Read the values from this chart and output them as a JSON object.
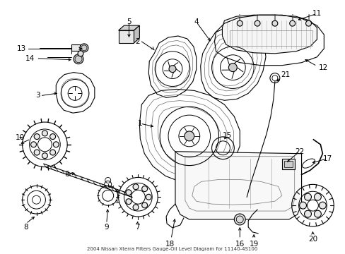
{
  "title": "2004 Nissan Xterra Filters Gauge-Oil Level Diagram for 11140-4S100",
  "bg_color": "#ffffff",
  "fig_width": 4.89,
  "fig_height": 3.6,
  "dpi": 100,
  "text_color": "#000000",
  "line_color": "#000000",
  "line_width": 0.8
}
